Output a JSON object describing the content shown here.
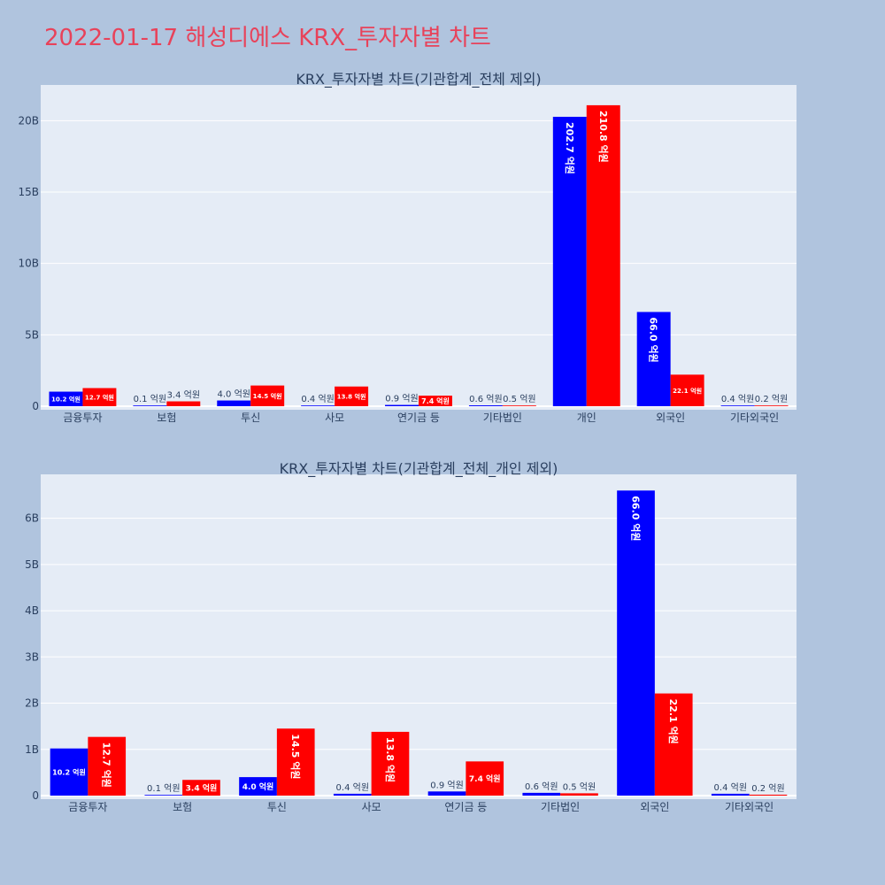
{
  "page": {
    "title": "2022-01-17 해성디에스 KRX_투자자별 차트",
    "title_color": "#e8425a",
    "background": "#b0c4de"
  },
  "chart_data": [
    {
      "type": "bar",
      "title": "KRX_투자자별 차트(기관합계_전체 제외)",
      "categories": [
        "금융투자",
        "보험",
        "투신",
        "사모",
        "연기금 등",
        "기타법인",
        "개인",
        "외국인",
        "기타외국인"
      ],
      "series": [
        {
          "color": "#0000ff",
          "values": [
            1020000000,
            10000000,
            400000000,
            40000000,
            90000000,
            60000000,
            20270000000,
            6600000000,
            40000000
          ],
          "labels": [
            "10.2 억원",
            "0.1 억원",
            "4.0 억원",
            "0.4 억원",
            "0.9 억원",
            "0.6 억원",
            "202.7 억원",
            "66.0 억원",
            "0.4 억원"
          ]
        },
        {
          "color": "#ff0000",
          "values": [
            1270000000,
            340000000,
            1450000000,
            1380000000,
            740000000,
            50000000,
            21080000000,
            2210000000,
            20000000
          ],
          "labels": [
            "12.7 억원",
            "3.4 억원",
            "14.5 억원",
            "13.8 억원",
            "7.4 억원",
            "0.5 억원",
            "210.8 억원",
            "22.1 억원",
            "0.2 억원"
          ]
        }
      ],
      "ylim": [
        0,
        22500000000
      ],
      "yticks": [
        0,
        5000000000,
        10000000000,
        15000000000,
        20000000000
      ],
      "ytick_labels": [
        "0",
        "5B",
        "10B",
        "15B",
        "20B"
      ],
      "grid": true,
      "plot_bg": "#e5ecf6"
    },
    {
      "type": "bar",
      "title": "KRX_투자자별 차트(기관합계_전체_개인 제외)",
      "categories": [
        "금융투자",
        "보험",
        "투신",
        "사모",
        "연기금 등",
        "기타법인",
        "외국인",
        "기타외국인"
      ],
      "series": [
        {
          "color": "#0000ff",
          "values": [
            1020000000,
            10000000,
            400000000,
            40000000,
            90000000,
            60000000,
            6600000000,
            40000000
          ],
          "labels": [
            "10.2 억원",
            "0.1 억원",
            "4.0 억원",
            "0.4 억원",
            "0.9 억원",
            "0.6 억원",
            "66.0 억원",
            "0.4 억원"
          ]
        },
        {
          "color": "#ff0000",
          "values": [
            1270000000,
            340000000,
            1450000000,
            1380000000,
            740000000,
            50000000,
            2210000000,
            20000000
          ],
          "labels": [
            "12.7 억원",
            "3.4 억원",
            "14.5 억원",
            "13.8 억원",
            "7.4 억원",
            "0.5 억원",
            "22.1 억원",
            "0.2 억원"
          ]
        }
      ],
      "ylim": [
        0,
        6950000000
      ],
      "yticks": [
        0,
        1000000000,
        2000000000,
        3000000000,
        4000000000,
        5000000000,
        6000000000
      ],
      "ytick_labels": [
        "0",
        "1B",
        "2B",
        "3B",
        "4B",
        "5B",
        "6B"
      ],
      "grid": true,
      "plot_bg": "#e5ecf6"
    }
  ]
}
